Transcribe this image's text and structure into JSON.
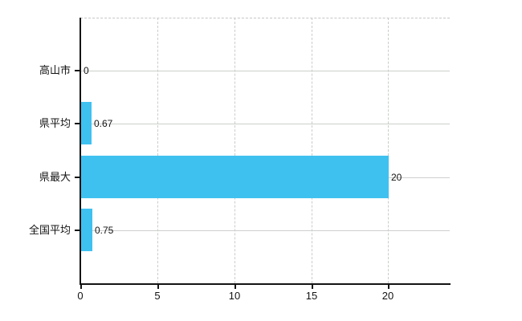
{
  "chart_data": {
    "type": "bar",
    "orientation": "horizontal",
    "title": "",
    "xlabel": "",
    "ylabel": "",
    "categories": [
      "高山市",
      "県平均",
      "県最大",
      "全国平均"
    ],
    "values": [
      0,
      0.67,
      20,
      0.75
    ],
    "value_labels": [
      "0",
      "0.67",
      "20",
      "0.75"
    ],
    "x_tick_values": [
      0,
      5,
      10,
      15,
      20
    ],
    "x_tick_labels": [
      "0",
      "5",
      "10",
      "15",
      "20"
    ],
    "xlim": [
      0,
      24
    ],
    "grid": true,
    "legend_position": "none",
    "bar_color": "#3FC1F0",
    "gridline_color": "#ccd0cc",
    "axis_color": "#141414",
    "background_color": "#ffffff"
  }
}
